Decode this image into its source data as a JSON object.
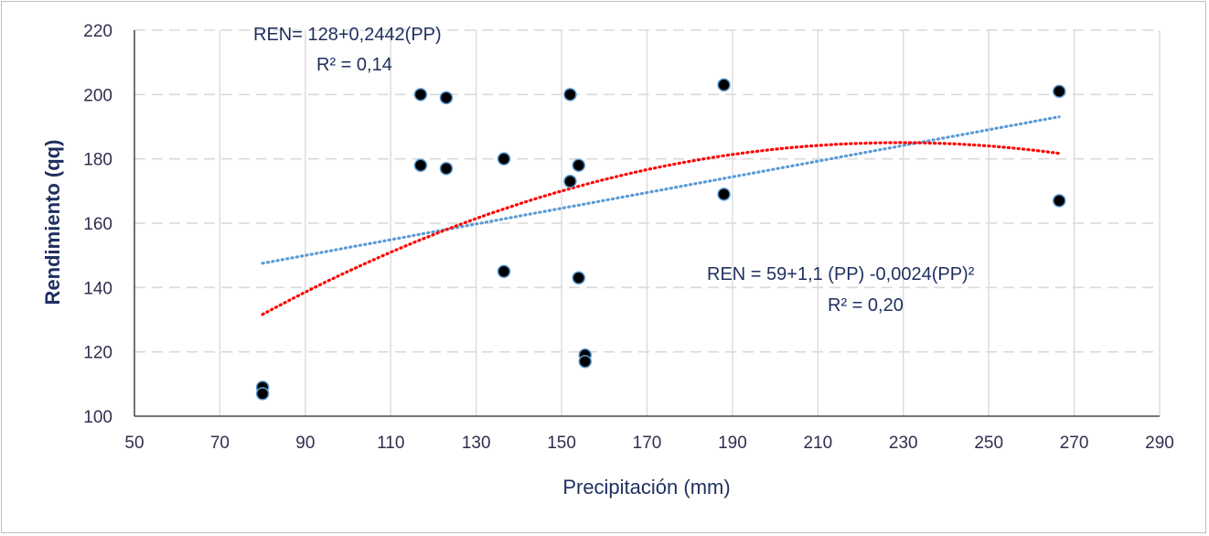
{
  "chart_data": {
    "type": "scatter",
    "xlabel": "Precipitación (mm)",
    "ylabel": "Rendimiento (qq)",
    "xlim": [
      50,
      290
    ],
    "ylim": [
      100,
      220
    ],
    "x_ticks": [
      50,
      70,
      90,
      110,
      130,
      150,
      170,
      190,
      210,
      230,
      250,
      270,
      290
    ],
    "y_ticks": [
      100,
      120,
      140,
      160,
      180,
      200,
      220
    ],
    "grid": "vertical solid, horizontal dashed",
    "points": [
      {
        "x": 80,
        "y": 109
      },
      {
        "x": 80,
        "y": 107
      },
      {
        "x": 117,
        "y": 200
      },
      {
        "x": 117,
        "y": 178
      },
      {
        "x": 123,
        "y": 199
      },
      {
        "x": 123,
        "y": 177
      },
      {
        "x": 136.5,
        "y": 180
      },
      {
        "x": 136.5,
        "y": 145
      },
      {
        "x": 152,
        "y": 200
      },
      {
        "x": 152,
        "y": 173
      },
      {
        "x": 154,
        "y": 178
      },
      {
        "x": 154,
        "y": 143
      },
      {
        "x": 155.5,
        "y": 119
      },
      {
        "x": 155.5,
        "y": 117
      },
      {
        "x": 188,
        "y": 203
      },
      {
        "x": 188,
        "y": 169
      },
      {
        "x": 266.5,
        "y": 201
      },
      {
        "x": 266.5,
        "y": 167
      }
    ],
    "trendlines": [
      {
        "name": "linear",
        "color": "#5b9bd5",
        "intercept": 128,
        "slope": 0.2442,
        "x_range": [
          80,
          266.5
        ]
      },
      {
        "name": "polynomial",
        "color": "#ff0000",
        "c0": 59,
        "c1": 1.1,
        "c2": -0.0024,
        "x_range": [
          80,
          266.5
        ]
      }
    ],
    "annotations": {
      "linear_equation": "REN= 128+0,2442(PP)",
      "linear_r2": "R² = 0,14",
      "poly_equation": "REN = 59+1,1 (PP) -0,0024(PP)²",
      "poly_r2": "R² = 0,20"
    }
  }
}
